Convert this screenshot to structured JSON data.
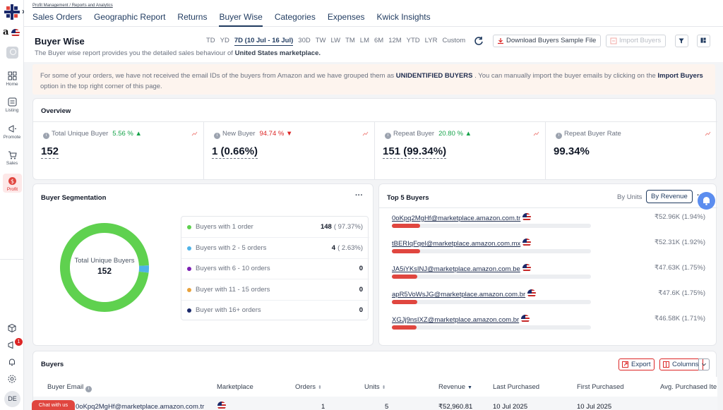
{
  "breadcrumb": "Profit Management / Reports and Analytics",
  "tabs": [
    {
      "label": "Sales Orders"
    },
    {
      "label": "Geographic Report"
    },
    {
      "label": "Returns"
    },
    {
      "label": "Buyer Wise"
    },
    {
      "label": "Categories"
    },
    {
      "label": "Expenses"
    },
    {
      "label": "Kwick Insights"
    }
  ],
  "sidebar": {
    "marketplace_letter": "a",
    "nav": [
      {
        "label": "Home",
        "icon": "grid-icon"
      },
      {
        "label": "Listing",
        "icon": "listing-icon"
      },
      {
        "label": "Promote",
        "icon": "megaphone-icon"
      },
      {
        "label": "Sales",
        "icon": "cart-icon"
      },
      {
        "label": "Profit",
        "icon": "dollar-icon"
      }
    ],
    "notification_count": "1",
    "avatar_initials": "DE"
  },
  "page": {
    "title": "Buyer Wise",
    "subtitle_prefix": "The Buyer wise report provides you the detailed sales behaviour of",
    "subtitle_market": "United States marketplace."
  },
  "date_ranges": [
    "TD",
    "YD",
    "7D (10 Jul - 16 Jul)",
    "30D",
    "TW",
    "LW",
    "TM",
    "LM",
    "6M",
    "12M",
    "YTD",
    "LYR",
    "Custom"
  ],
  "date_ranges_active": 2,
  "toolbar": {
    "download_label": "Download Buyers Sample File",
    "import_label": "Import Buyers"
  },
  "notice": {
    "part1": "For some of your orders, we have not received the email IDs of the buyers from Amazon and we have grouped them as",
    "highlight1": "UNIDENTIFIED BUYERS",
    "part2": ". You can manually import the buyer emails by clicking on the",
    "highlight2": "Import Buyers",
    "part3": "option in the top right corner of this page."
  },
  "overview": {
    "title": "Overview",
    "metrics": [
      {
        "label": "Total Unique Buyer",
        "change": "5.56 %",
        "direction": "up",
        "value": "152"
      },
      {
        "label": "New Buyer",
        "change": "94.74 %",
        "direction": "down",
        "value": "1 (0.66%)"
      },
      {
        "label": "Repeat Buyer",
        "change": "20.80 %",
        "direction": "up",
        "value": "151 (99.34%)"
      },
      {
        "label": "Repeat Buyer Rate",
        "change": "",
        "direction": "",
        "value": "99.34%"
      }
    ]
  },
  "segmentation": {
    "title": "Buyer Segmentation",
    "center_label": "Total Unique Buyers",
    "center_value": "152",
    "rows": [
      {
        "label": "Buyers with 1 order",
        "count": "148",
        "pct": "( 97.37%)",
        "share": 97.37,
        "color": "#5fd14f"
      },
      {
        "label": "Buyers with 2 - 5 orders",
        "count": "4",
        "pct": "( 2.63%)",
        "share": 2.63,
        "color": "#4fb3e8"
      },
      {
        "label": "Buyers with 6 - 10 orders",
        "count": "0",
        "pct": "",
        "share": 0,
        "color": "#7c1fb3"
      },
      {
        "label": "Buyer with 11 - 15 orders",
        "count": "0",
        "pct": "",
        "share": 0,
        "color": "#e8a23c"
      },
      {
        "label": "Buyer with 16+ orders",
        "count": "0",
        "pct": "",
        "share": 0,
        "color": "#1b2a6b"
      }
    ]
  },
  "top5": {
    "title": "Top 5 Buyers",
    "by_units": "By Units",
    "by_revenue": "By Revenue",
    "buyers": [
      {
        "email": "0oKpq2MgHf@marketplace.amazon.com.tr",
        "revenue": "₹52.96K (1.94%)",
        "share": 1.94
      },
      {
        "email": "tBERIqFqel@marketplace.amazon.com.mx",
        "revenue": "₹52.31K (1.92%)",
        "share": 1.92
      },
      {
        "email": "JA5iYKsINJ@marketplace.amazon.com.be",
        "revenue": "₹47.63K (1.75%)",
        "share": 1.75
      },
      {
        "email": "apR5VoWsJG@marketplace.amazon.com.br",
        "revenue": "₹47.6K (1.75%)",
        "share": 1.75
      },
      {
        "email": "XGJj9nsIXZ@marketplace.amazon.com.br",
        "revenue": "₹46.58K (1.71%)",
        "share": 1.71
      }
    ]
  },
  "buyers_table": {
    "title": "Buyers",
    "export_label": "Export",
    "columns_label": "Columns",
    "headers": [
      "Buyer Email",
      "Marketplace",
      "Orders",
      "Units",
      "Revenue",
      "Last Purchased",
      "First Purchased",
      "Avg. Purchased Ite"
    ],
    "row": {
      "email": "0oKpq2MgHf@marketplace.amazon.com.tr",
      "orders": "1",
      "units": "5",
      "revenue": "₹52,960.81",
      "last": "10 Jul 2025",
      "first": "10 Jul 2025"
    }
  },
  "chat_label": "Chat with us"
}
